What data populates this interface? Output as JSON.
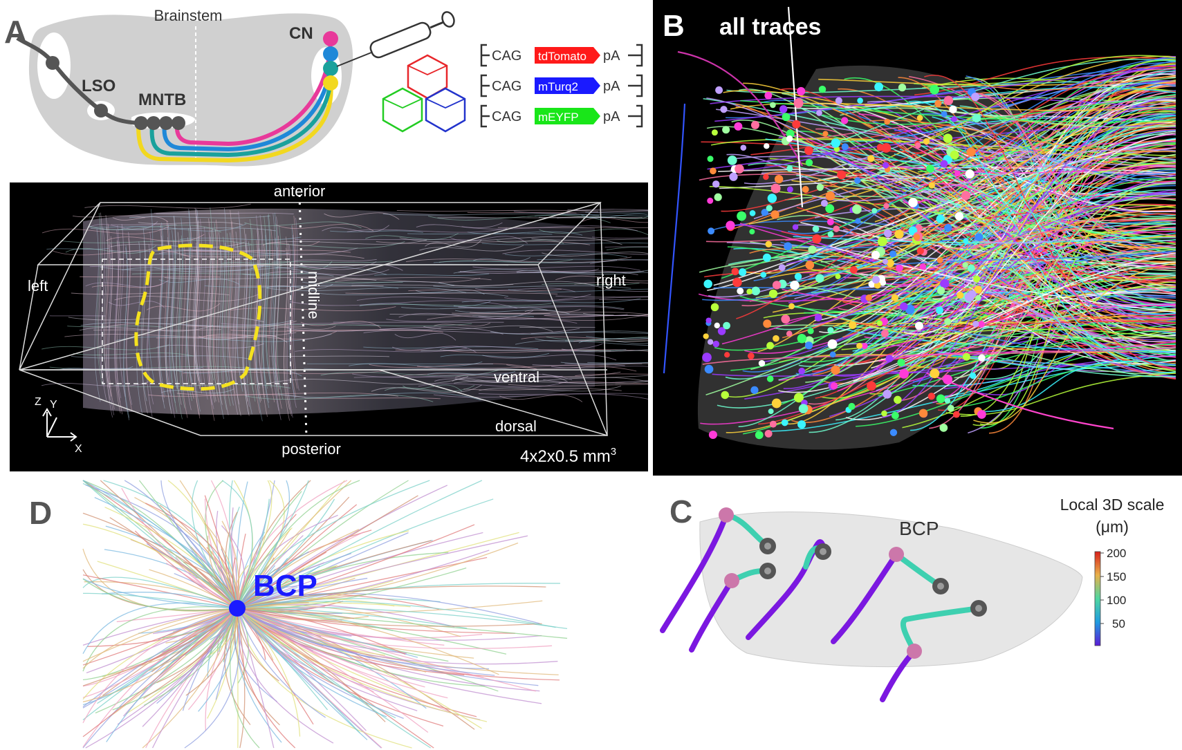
{
  "panels": {
    "a": {
      "letter": "A",
      "brainstem": "Brainstem",
      "lso": "LSO",
      "mntb": "MNTB",
      "cn": "CN",
      "constructs": [
        {
          "promoter": "CAG",
          "gene": "tdTomato",
          "end": "pA",
          "color": "#ff1a1a"
        },
        {
          "promoter": "CAG",
          "gene": "mTurq2",
          "end": "pA",
          "color": "#1a1aff"
        },
        {
          "promoter": "CAG",
          "gene": "mEYFP",
          "end": "pA",
          "color": "#19e619"
        }
      ],
      "virus_colors": [
        "#e8262a",
        "#22cc22",
        "#2233cc"
      ],
      "pathway_colors": [
        "#e8399a",
        "#1f88d8",
        "#1aa19c",
        "#f2d81f"
      ],
      "volume": {
        "anterior": "anterior",
        "posterior": "posterior",
        "left": "left",
        "right": "right",
        "midline": "midline",
        "ventral": "ventral",
        "dorsal": "dorsal",
        "axis_z": "Z",
        "axis_y": "Y",
        "axis_x": "X",
        "dimensions": "4x2x0.5 mm",
        "dimensions_sup": "3"
      }
    },
    "b": {
      "letter": "B",
      "title": "all traces"
    },
    "c": {
      "letter": "C",
      "bcp": "BCP",
      "colorbar_title_1": "Local 3D scale",
      "colorbar_title_2": "(μm)",
      "colorbar_ticks": [
        "200",
        "150",
        "100",
        "50"
      ]
    },
    "d": {
      "letter": "D",
      "bcp": "BCP",
      "bcp_color": "#1a1aff"
    }
  }
}
